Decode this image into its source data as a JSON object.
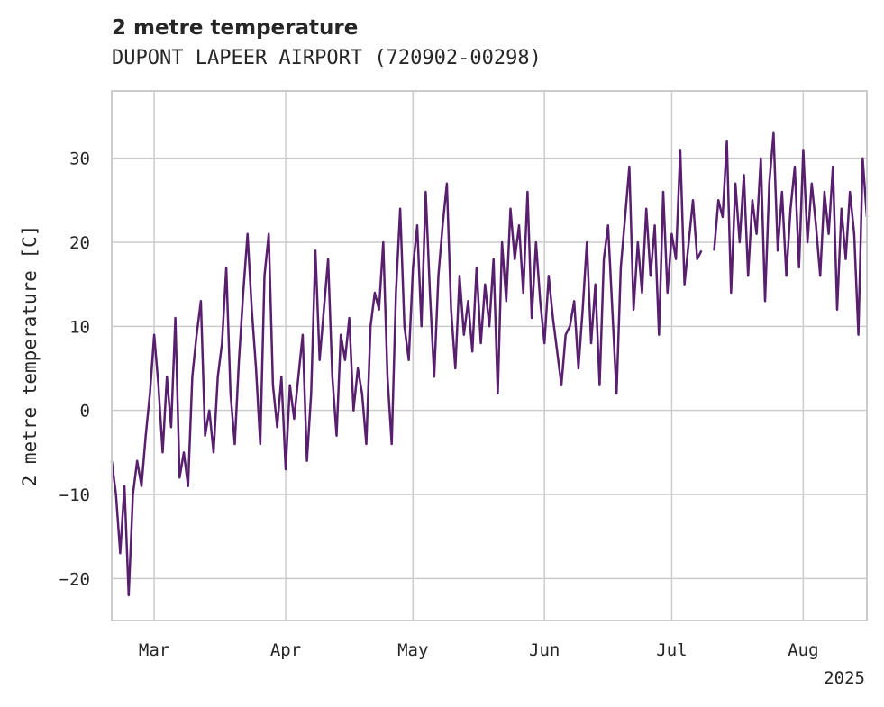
{
  "chart_data": {
    "type": "line",
    "title": "2 metre temperature",
    "subtitle": "DUPONT LAPEER AIRPORT (720902-00298)",
    "ylabel": "2 metre temperature [C]",
    "xlabel": "",
    "x_range": [
      "2025-02-19",
      "2025-08-16"
    ],
    "ylim": [
      -25,
      38
    ],
    "yticks": [
      -20,
      -10,
      0,
      10,
      20,
      30
    ],
    "xticks": [
      {
        "date": "2025-03-01",
        "label": "Mar"
      },
      {
        "date": "2025-04-01",
        "label": "Apr"
      },
      {
        "date": "2025-05-01",
        "label": "May"
      },
      {
        "date": "2025-06-01",
        "label": "Jun"
      },
      {
        "date": "2025-07-01",
        "label": "Jul"
      },
      {
        "date": "2025-08-01",
        "label": "Aug"
      }
    ],
    "year_label": "2025",
    "grid": true,
    "color": "#581f6e",
    "series": [
      {
        "values": [
          [
            "2025-02-19",
            -6
          ],
          [
            "2025-02-20",
            -10
          ],
          [
            "2025-02-21",
            -17
          ],
          [
            "2025-02-22",
            -9
          ],
          [
            "2025-02-23",
            -22
          ],
          [
            "2025-02-24",
            -10
          ],
          [
            "2025-02-25",
            -6
          ],
          [
            "2025-02-26",
            -9
          ],
          [
            "2025-02-27",
            -3
          ],
          [
            "2025-02-28",
            2
          ],
          [
            "2025-03-01",
            9
          ],
          [
            "2025-03-02",
            3
          ],
          [
            "2025-03-03",
            -5
          ],
          [
            "2025-03-04",
            4
          ],
          [
            "2025-03-05",
            -2
          ],
          [
            "2025-03-06",
            11
          ],
          [
            "2025-03-07",
            -8
          ],
          [
            "2025-03-08",
            -5
          ],
          [
            "2025-03-09",
            -9
          ],
          [
            "2025-03-10",
            4
          ],
          [
            "2025-03-11",
            9
          ],
          [
            "2025-03-12",
            13
          ],
          [
            "2025-03-13",
            -3
          ],
          [
            "2025-03-14",
            0
          ],
          [
            "2025-03-15",
            -5
          ],
          [
            "2025-03-16",
            4
          ],
          [
            "2025-03-17",
            8
          ],
          [
            "2025-03-18",
            17
          ],
          [
            "2025-03-19",
            2
          ],
          [
            "2025-03-20",
            -4
          ],
          [
            "2025-03-21",
            6
          ],
          [
            "2025-03-22",
            14
          ],
          [
            "2025-03-23",
            21
          ],
          [
            "2025-03-24",
            12
          ],
          [
            "2025-03-25",
            5
          ],
          [
            "2025-03-26",
            -4
          ],
          [
            "2025-03-27",
            16
          ],
          [
            "2025-03-28",
            21
          ],
          [
            "2025-03-29",
            3
          ],
          [
            "2025-03-30",
            -2
          ],
          [
            "2025-03-31",
            4
          ],
          [
            "2025-04-01",
            -7
          ],
          [
            "2025-04-02",
            3
          ],
          [
            "2025-04-03",
            -1
          ],
          [
            "2025-04-04",
            4
          ],
          [
            "2025-04-05",
            9
          ],
          [
            "2025-04-06",
            -6
          ],
          [
            "2025-04-07",
            2
          ],
          [
            "2025-04-08",
            19
          ],
          [
            "2025-04-09",
            6
          ],
          [
            "2025-04-10",
            12
          ],
          [
            "2025-04-11",
            18
          ],
          [
            "2025-04-12",
            4
          ],
          [
            "2025-04-13",
            -3
          ],
          [
            "2025-04-14",
            9
          ],
          [
            "2025-04-15",
            6
          ],
          [
            "2025-04-16",
            11
          ],
          [
            "2025-04-17",
            0
          ],
          [
            "2025-04-18",
            5
          ],
          [
            "2025-04-19",
            2
          ],
          [
            "2025-04-20",
            -4
          ],
          [
            "2025-04-21",
            10
          ],
          [
            "2025-04-22",
            14
          ],
          [
            "2025-04-23",
            12
          ],
          [
            "2025-04-24",
            20
          ],
          [
            "2025-04-25",
            4
          ],
          [
            "2025-04-26",
            -4
          ],
          [
            "2025-04-27",
            14
          ],
          [
            "2025-04-28",
            24
          ],
          [
            "2025-04-29",
            10
          ],
          [
            "2025-04-30",
            6
          ],
          [
            "2025-05-01",
            17
          ],
          [
            "2025-05-02",
            22
          ],
          [
            "2025-05-03",
            10
          ],
          [
            "2025-05-04",
            26
          ],
          [
            "2025-05-05",
            14
          ],
          [
            "2025-05-06",
            4
          ],
          [
            "2025-05-07",
            16
          ],
          [
            "2025-05-08",
            22
          ],
          [
            "2025-05-09",
            27
          ],
          [
            "2025-05-10",
            12
          ],
          [
            "2025-05-11",
            5
          ],
          [
            "2025-05-12",
            16
          ],
          [
            "2025-05-13",
            9
          ],
          [
            "2025-05-14",
            13
          ],
          [
            "2025-05-15",
            7
          ],
          [
            "2025-05-16",
            17
          ],
          [
            "2025-05-17",
            8
          ],
          [
            "2025-05-18",
            15
          ],
          [
            "2025-05-19",
            10
          ],
          [
            "2025-05-20",
            18
          ],
          [
            "2025-05-21",
            2
          ],
          [
            "2025-05-22",
            20
          ],
          [
            "2025-05-23",
            13
          ],
          [
            "2025-05-24",
            24
          ],
          [
            "2025-05-25",
            18
          ],
          [
            "2025-05-26",
            22
          ],
          [
            "2025-05-27",
            14
          ],
          [
            "2025-05-28",
            26
          ],
          [
            "2025-05-29",
            11
          ],
          [
            "2025-05-30",
            20
          ],
          [
            "2025-05-31",
            13
          ],
          [
            "2025-06-01",
            8
          ],
          [
            "2025-06-02",
            16
          ],
          [
            "2025-06-03",
            11
          ],
          [
            "2025-06-04",
            7
          ],
          [
            "2025-06-05",
            3
          ],
          [
            "2025-06-06",
            9
          ],
          [
            "2025-06-07",
            10
          ],
          [
            "2025-06-08",
            13
          ],
          [
            "2025-06-09",
            5
          ],
          [
            "2025-06-10",
            12
          ],
          [
            "2025-06-11",
            20
          ],
          [
            "2025-06-12",
            8
          ],
          [
            "2025-06-13",
            15
          ],
          [
            "2025-06-14",
            3
          ],
          [
            "2025-06-15",
            18
          ],
          [
            "2025-06-16",
            22
          ],
          [
            "2025-06-17",
            12
          ],
          [
            "2025-06-18",
            2
          ],
          [
            "2025-06-19",
            17
          ],
          [
            "2025-06-20",
            23
          ],
          [
            "2025-06-21",
            29
          ],
          [
            "2025-06-22",
            12
          ],
          [
            "2025-06-23",
            20
          ],
          [
            "2025-06-24",
            14
          ],
          [
            "2025-06-25",
            24
          ],
          [
            "2025-06-26",
            16
          ],
          [
            "2025-06-27",
            22
          ],
          [
            "2025-06-28",
            9
          ],
          [
            "2025-06-29",
            26
          ],
          [
            "2025-06-30",
            14
          ],
          [
            "2025-07-01",
            21
          ],
          [
            "2025-07-02",
            18
          ],
          [
            "2025-07-03",
            31
          ],
          [
            "2025-07-04",
            15
          ],
          [
            "2025-07-05",
            20
          ],
          [
            "2025-07-06",
            25
          ],
          [
            "2025-07-07",
            18
          ],
          [
            "2025-07-08",
            19
          ]
        ]
      },
      {
        "values": [
          [
            "2025-07-11",
            19
          ],
          [
            "2025-07-12",
            25
          ],
          [
            "2025-07-13",
            23
          ],
          [
            "2025-07-14",
            32
          ],
          [
            "2025-07-15",
            14
          ],
          [
            "2025-07-16",
            27
          ],
          [
            "2025-07-17",
            20
          ],
          [
            "2025-07-18",
            28
          ],
          [
            "2025-07-19",
            16
          ],
          [
            "2025-07-20",
            25
          ],
          [
            "2025-07-21",
            21
          ],
          [
            "2025-07-22",
            30
          ],
          [
            "2025-07-23",
            13
          ],
          [
            "2025-07-24",
            27
          ],
          [
            "2025-07-25",
            33
          ],
          [
            "2025-07-26",
            19
          ],
          [
            "2025-07-27",
            26
          ],
          [
            "2025-07-28",
            16
          ],
          [
            "2025-07-29",
            24
          ],
          [
            "2025-07-30",
            29
          ],
          [
            "2025-07-31",
            17
          ],
          [
            "2025-08-01",
            31
          ],
          [
            "2025-08-02",
            20
          ],
          [
            "2025-08-03",
            27
          ],
          [
            "2025-08-04",
            22
          ],
          [
            "2025-08-05",
            16
          ],
          [
            "2025-08-06",
            26
          ],
          [
            "2025-08-07",
            21
          ],
          [
            "2025-08-08",
            29
          ],
          [
            "2025-08-09",
            12
          ],
          [
            "2025-08-10",
            24
          ],
          [
            "2025-08-11",
            18
          ],
          [
            "2025-08-12",
            26
          ],
          [
            "2025-08-13",
            21
          ],
          [
            "2025-08-14",
            9
          ],
          [
            "2025-08-15",
            30
          ],
          [
            "2025-08-16",
            23
          ]
        ]
      }
    ]
  }
}
